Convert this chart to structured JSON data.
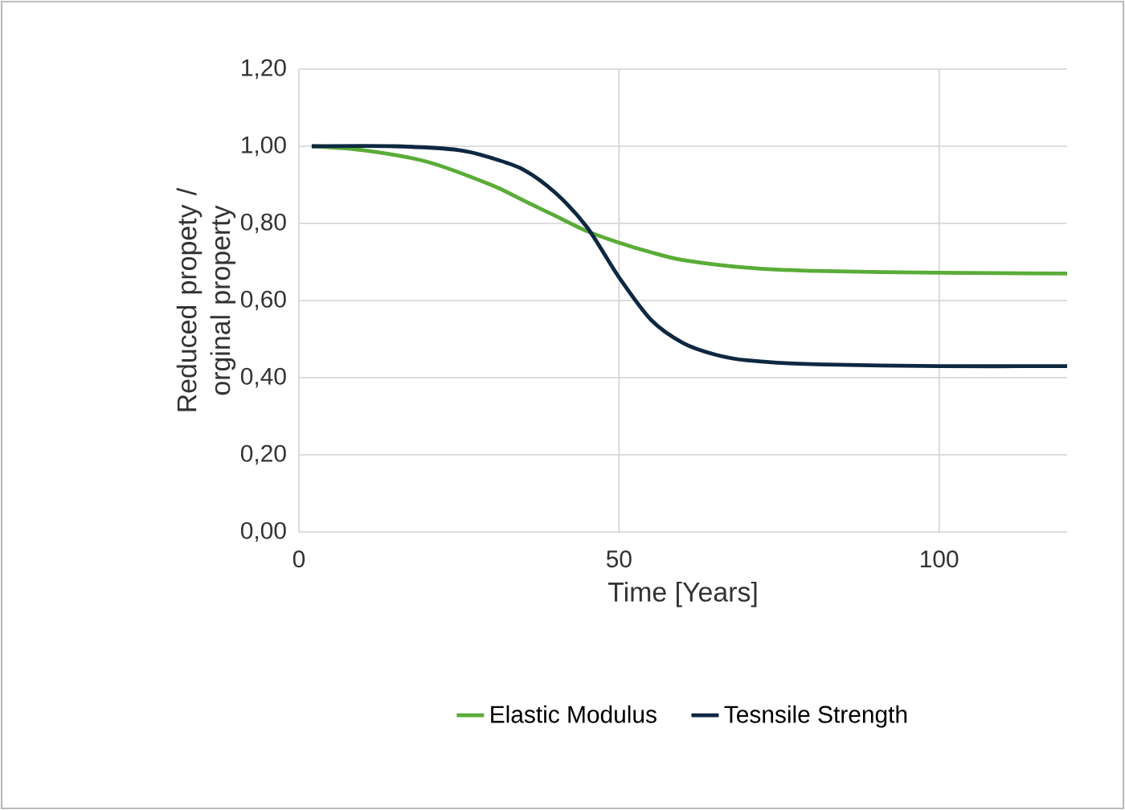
{
  "chart_data": {
    "type": "line",
    "xlabel": "Time [Years]",
    "ylabel": "Reduced propety / orginal property",
    "xlim": [
      0,
      120
    ],
    "xticks": [
      0,
      50,
      100
    ],
    "ylim": [
      0,
      1.2
    ],
    "yticks": [
      {
        "value": 0,
        "label": "0,00"
      },
      {
        "value": 0.2,
        "label": "0,20"
      },
      {
        "value": 0.4,
        "label": "0,40"
      },
      {
        "value": 0.6,
        "label": "0,60"
      },
      {
        "value": 0.8,
        "label": "0,80"
      },
      {
        "value": 1.0,
        "label": "1,00"
      },
      {
        "value": 1.2,
        "label": "1,20"
      }
    ],
    "grid": true,
    "legend": "bottom",
    "marker": "none",
    "line_style": "solid",
    "series": [
      {
        "name": "Elastic Modulus",
        "color": "#5aac38",
        "x": [
          2,
          10,
          20,
          30,
          35,
          40,
          45,
          50,
          55,
          60,
          70,
          80,
          100,
          120
        ],
        "values": [
          1.0,
          0.99,
          0.96,
          0.9,
          0.86,
          0.82,
          0.78,
          0.75,
          0.725,
          0.705,
          0.685,
          0.677,
          0.672,
          0.67
        ]
      },
      {
        "name": "Tesnsile Strength",
        "color": "#0e2841",
        "x": [
          2,
          15,
          25,
          30,
          35,
          40,
          45,
          50,
          55,
          60,
          65,
          70,
          80,
          100,
          120
        ],
        "values": [
          1.0,
          1.0,
          0.99,
          0.97,
          0.94,
          0.88,
          0.79,
          0.66,
          0.55,
          0.49,
          0.46,
          0.445,
          0.435,
          0.43,
          0.43
        ]
      }
    ]
  }
}
